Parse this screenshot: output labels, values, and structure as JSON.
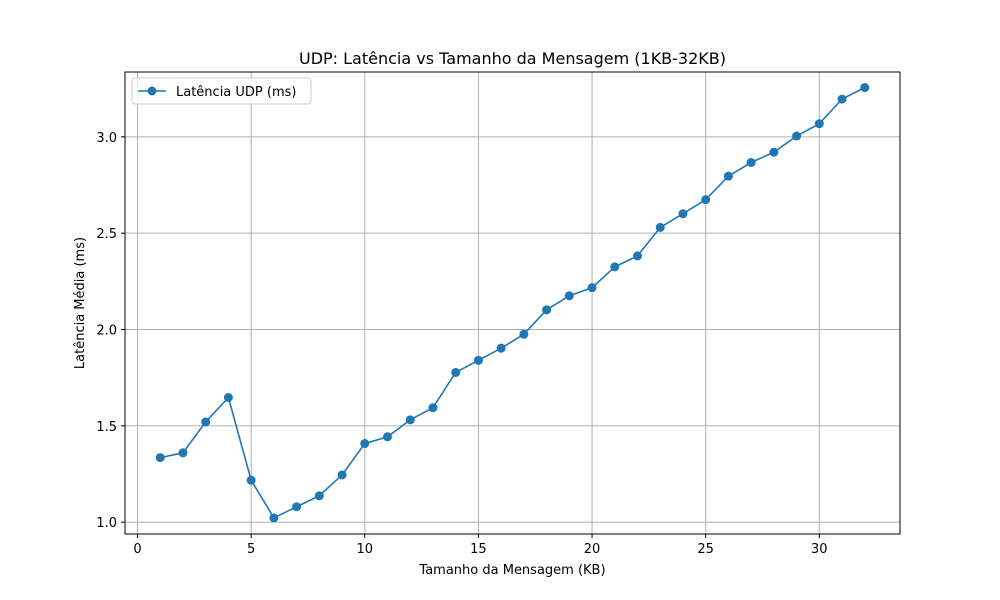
{
  "chart_data": {
    "type": "line",
    "title": "UDP: Latência vs Tamanho da Mensagem (1KB-32KB)",
    "xlabel": "Tamanho da Mensagem (KB)",
    "ylabel": "Latência Média (ms)",
    "xlim": [
      -0.55,
      33.55
    ],
    "ylim": [
      0.9385,
      3.3365
    ],
    "xticks": [
      0,
      5,
      10,
      15,
      20,
      25,
      30
    ],
    "yticks": [
      1.0,
      1.5,
      2.0,
      2.5,
      3.0
    ],
    "ytick_labels": [
      "1.0",
      "1.5",
      "2.0",
      "2.5",
      "3.0"
    ],
    "grid": true,
    "legend_position": "top-left",
    "series": [
      {
        "name": "Latência UDP (ms)",
        "color": "#1f77b4",
        "marker": "circle",
        "x": [
          1,
          2,
          3,
          4,
          5,
          6,
          7,
          8,
          9,
          10,
          11,
          12,
          13,
          14,
          15,
          16,
          17,
          18,
          19,
          20,
          21,
          22,
          23,
          24,
          25,
          26,
          27,
          28,
          29,
          30,
          31,
          32
        ],
        "y": [
          1.335,
          1.36,
          1.52,
          1.647,
          1.218,
          1.022,
          1.08,
          1.137,
          1.245,
          1.408,
          1.443,
          1.531,
          1.594,
          1.777,
          1.84,
          1.903,
          1.975,
          2.102,
          2.175,
          2.217,
          2.325,
          2.382,
          2.53,
          2.601,
          2.674,
          2.796,
          2.867,
          2.92,
          3.004,
          3.068,
          3.196,
          3.256
        ]
      }
    ]
  }
}
